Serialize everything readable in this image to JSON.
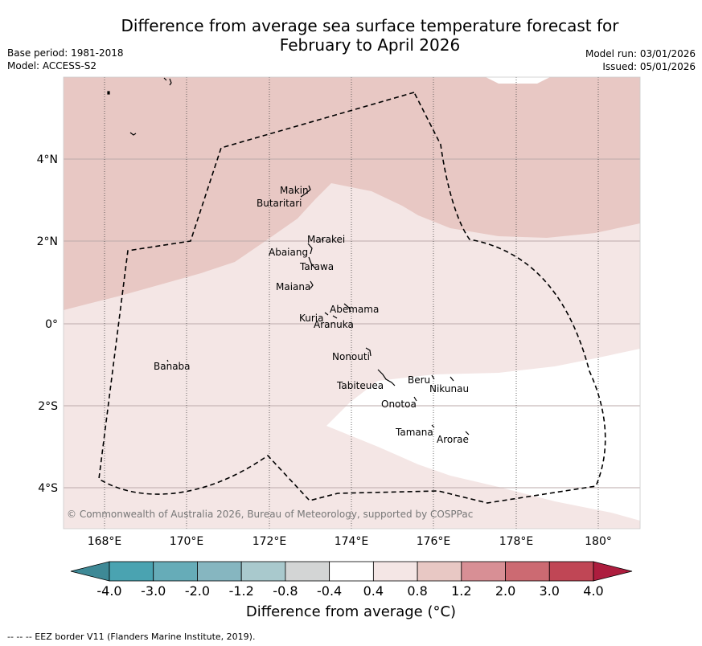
{
  "header": {
    "title_line1": "Difference from average sea surface temperature forecast for",
    "title_line2": "February to April 2026",
    "base_period": "Base period: 1981-2018",
    "model": "Model: ACCESS-S2",
    "model_run": "Model run: 03/01/2026",
    "issued": "Issued: 05/01/2026"
  },
  "map": {
    "lon_labels": [
      "168°E",
      "170°E",
      "172°E",
      "174°E",
      "176°E",
      "178°E",
      "180°"
    ],
    "lat_labels": [
      "4°N",
      "2°N",
      "0°",
      "2°S",
      "4°S"
    ],
    "copyright": "© Commonwealth of Australia 2026, Bureau of Meteorology, supported by COSPPac",
    "islands": [
      {
        "name": "Makin"
      },
      {
        "name": "Butaritari"
      },
      {
        "name": "Marakei"
      },
      {
        "name": "Abaiang"
      },
      {
        "name": "Tarawa"
      },
      {
        "name": "Maiana"
      },
      {
        "name": "Abemama"
      },
      {
        "name": "Kuria"
      },
      {
        "name": "Aranuka"
      },
      {
        "name": "Nonouti"
      },
      {
        "name": "Banaba"
      },
      {
        "name": "Tabiteuea"
      },
      {
        "name": "Beru"
      },
      {
        "name": "Nikunau"
      },
      {
        "name": "Onotoa"
      },
      {
        "name": "Tamana"
      },
      {
        "name": "Arorae"
      }
    ],
    "anomaly_zones": [
      {
        "range": "0.8 to 1.2",
        "color": "#e8c8c4",
        "area": "north"
      },
      {
        "range": "0.4 to 0.8",
        "color": "#f4e6e5",
        "area": "central"
      },
      {
        "range": "-0.4 to 0.4",
        "color": "#ffffff",
        "area": "south-east"
      }
    ]
  },
  "colorbar": {
    "tick_labels": [
      "-4.0",
      "-3.0",
      "-2.0",
      "-1.2",
      "-0.8",
      "-0.4",
      "0.4",
      "0.8",
      "1.2",
      "2.0",
      "3.0",
      "4.0"
    ],
    "colors": [
      "#3e8996",
      "#4aa3b1",
      "#66acb8",
      "#86b6c0",
      "#a9c9cd",
      "#d3d5d5",
      "#ffffff",
      "#f4e6e5",
      "#e8c8c4",
      "#d88f95",
      "#cc6a72",
      "#c04655",
      "#ad1d3e"
    ],
    "label": "Difference from average (°C)"
  },
  "footer": {
    "eez_note": "-- -- -- EEZ border V11 (Flanders Marine Institute, 2019)."
  }
}
